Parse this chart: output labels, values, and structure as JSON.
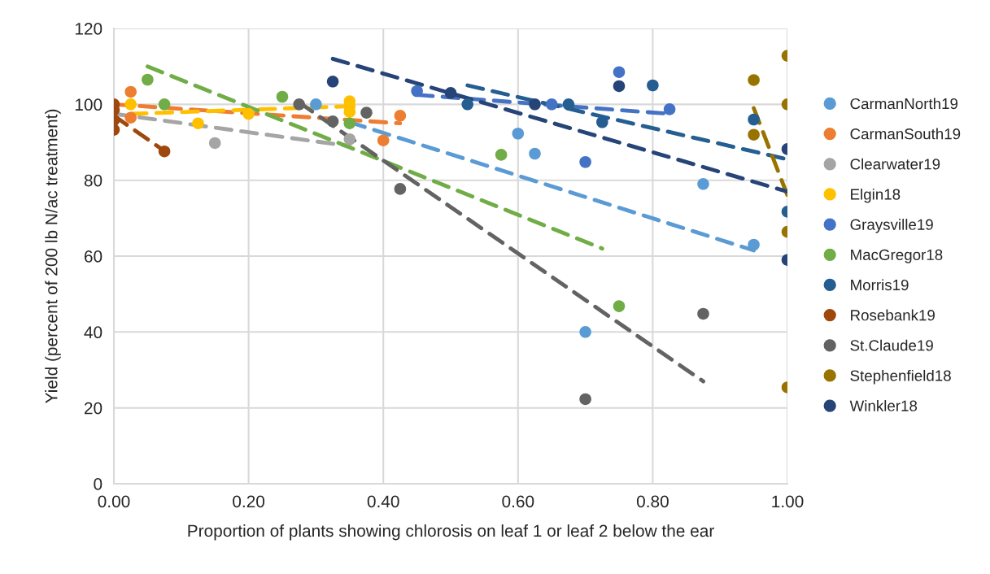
{
  "chart_data": {
    "type": "scatter",
    "xlabel": "Proportion of plants showing chlorosis on leaf 1 or leaf 2 below the ear",
    "ylabel": "Yield (percent of 200 lb N/ac treatment)",
    "xlim": [
      0,
      1
    ],
    "xticks": [
      {
        "value": 0,
        "label": "0.00"
      },
      {
        "value": 0.2,
        "label": "0.20"
      },
      {
        "value": 0.4,
        "label": "0.40"
      },
      {
        "value": 0.6,
        "label": "0.60"
      },
      {
        "value": 0.8,
        "label": "0.80"
      },
      {
        "value": 1,
        "label": "1.00"
      }
    ],
    "ylim": [
      0,
      120
    ],
    "yticks": [
      0,
      20,
      40,
      60,
      80,
      100,
      120
    ],
    "grid": true,
    "legend": "right",
    "marker": "circle",
    "series": [
      {
        "name": "CarmanNorth19",
        "color": "#5b9bd5",
        "x": [
          0.3,
          0.6,
          0.625,
          0.7,
          0.875,
          0.95
        ],
        "values": [
          100,
          92.3,
          87,
          40,
          79,
          63
        ]
      },
      {
        "name": "CarmanSouth19",
        "color": "#ed7d31",
        "x": [
          0.025,
          0.025,
          0.4,
          0.425
        ],
        "values": [
          103.3,
          96.5,
          90.5,
          97
        ]
      },
      {
        "name": "Clearwater19",
        "color": "#a5a5a5",
        "x": [
          0.15,
          0.35
        ],
        "values": [
          89.8,
          90.8
        ]
      },
      {
        "name": "Elgin18",
        "color": "#ffc000",
        "x": [
          0.025,
          0.125,
          0.2,
          0.35,
          0.35,
          0.35
        ],
        "values": [
          100,
          95,
          97.5,
          100.8,
          99.5,
          98
        ]
      },
      {
        "name": "Graysville19",
        "color": "#4472c4",
        "x": [
          0.45,
          0.65,
          0.7,
          0.75,
          0.825
        ],
        "values": [
          103.5,
          100,
          84.8,
          108.5,
          98.7
        ]
      },
      {
        "name": "MacGregor18",
        "color": "#70ad47",
        "x": [
          0.05,
          0.075,
          0.25,
          0.35,
          0.575,
          0.75
        ],
        "values": [
          106.5,
          100,
          102,
          95,
          86.7,
          46.8
        ]
      },
      {
        "name": "Morris19",
        "color": "#255e91",
        "x": [
          0.525,
          0.675,
          0.725,
          0.8,
          0.95,
          1.0
        ],
        "values": [
          100,
          100,
          95.3,
          105,
          96,
          71.7
        ]
      },
      {
        "name": "Rosebank19",
        "color": "#9e480e",
        "x": [
          0,
          0,
          0,
          0,
          0.075
        ],
        "values": [
          100,
          98.5,
          95.8,
          93.3,
          87.6
        ]
      },
      {
        "name": "St.Claude19",
        "color": "#636363",
        "x": [
          0.275,
          0.325,
          0.375,
          0.425,
          0.7,
          0.875
        ],
        "values": [
          100,
          95.5,
          97.8,
          77.7,
          22.3,
          44.8
        ]
      },
      {
        "name": "Stephenfield18",
        "color": "#997300",
        "x": [
          0.95,
          1.0,
          1.0,
          0.95,
          1.0,
          1.0
        ],
        "values": [
          106.4,
          112.8,
          100,
          92,
          66.4,
          25.4
        ]
      },
      {
        "name": "Winkler18",
        "color": "#264478",
        "x": [
          0.325,
          0.5,
          0.625,
          0.75,
          1.0,
          1.0
        ],
        "values": [
          106,
          103,
          100,
          104.8,
          88.2,
          59
        ]
      },
      {
        "type": "line",
        "line_style": "dashed",
        "marker": "none",
        "color": "#5b9bd5",
        "x": [
          0.35,
          0.95
        ],
        "values": [
          95.3,
          61.5
        ]
      },
      {
        "type": "line",
        "line_style": "dashed",
        "marker": "none",
        "color": "#ed7d31",
        "x": [
          0,
          0.425
        ],
        "values": [
          100,
          95
        ]
      },
      {
        "type": "line",
        "line_style": "dashed",
        "marker": "none",
        "color": "#a5a5a5",
        "x": [
          0,
          0.35
        ],
        "values": [
          97.5,
          89
        ]
      },
      {
        "type": "line",
        "line_style": "dashed",
        "marker": "none",
        "color": "#ffc000",
        "x": [
          0.025,
          0.35
        ],
        "values": [
          97.5,
          99.5
        ]
      },
      {
        "type": "line",
        "line_style": "dashed",
        "marker": "none",
        "color": "#4472c4",
        "x": [
          0.45,
          0.825
        ],
        "values": [
          102.5,
          97.5
        ]
      },
      {
        "type": "line",
        "line_style": "dashed",
        "marker": "none",
        "color": "#70ad47",
        "x": [
          0.05,
          0.725
        ],
        "values": [
          110,
          62
        ]
      },
      {
        "type": "line",
        "line_style": "dashed",
        "marker": "none",
        "color": "#255e91",
        "x": [
          0.525,
          1.0
        ],
        "values": [
          105,
          85.5
        ]
      },
      {
        "type": "line",
        "line_style": "dashed",
        "marker": "none",
        "color": "#9e480e",
        "x": [
          0,
          0.075
        ],
        "values": [
          97,
          87.7
        ]
      },
      {
        "type": "line",
        "line_style": "dashed",
        "marker": "none",
        "color": "#636363",
        "x": [
          0.275,
          0.875
        ],
        "values": [
          100.5,
          27
        ]
      },
      {
        "type": "line",
        "line_style": "dashed",
        "marker": "none",
        "color": "#997300",
        "x": [
          0.95,
          1.0
        ],
        "values": [
          99,
          76
        ]
      },
      {
        "type": "line",
        "line_style": "dashed",
        "marker": "none",
        "color": "#264478",
        "x": [
          0.325,
          1.0
        ],
        "values": [
          112,
          77
        ]
      }
    ]
  }
}
